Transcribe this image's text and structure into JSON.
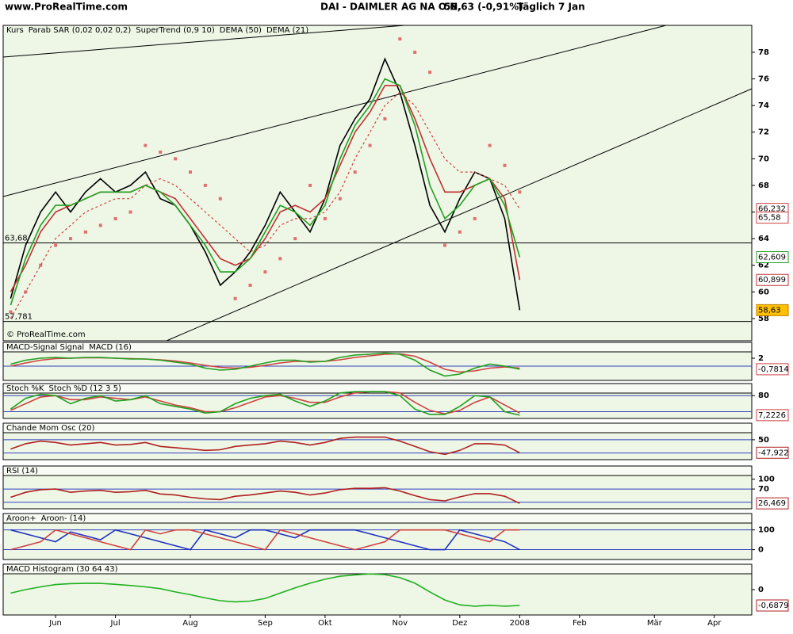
{
  "header": {
    "site": "www.ProRealTime.com",
    "instrument": "DAI - DAIMLER AG NA O.N.",
    "quote": "58,63 (-0,91%)",
    "period": "Täglich  7 Jan"
  },
  "x_axis": {
    "categories": [
      null,
      null,
      null,
      "Jun",
      null,
      null,
      null,
      "Jul",
      null,
      null,
      null,
      null,
      "Aug",
      null,
      null,
      null,
      null,
      "Sep",
      null,
      null,
      null,
      "Okt",
      null,
      null,
      null,
      null,
      "Nov",
      null,
      null,
      null,
      "Dez",
      null,
      null,
      null,
      "2008",
      null,
      null,
      null,
      "Feb",
      null,
      null,
      null,
      null,
      "Mär",
      null,
      null,
      null,
      "Apr",
      null,
      null
    ]
  },
  "chart_data": [
    {
      "type": "line",
      "watermark": "© ProRealTime.com",
      "ylim": [
        56.33,
        80.02
      ],
      "yticks": [
        58,
        60,
        62,
        64,
        66,
        68,
        70,
        72,
        74,
        76,
        78
      ],
      "hline_color": "#000000",
      "hlines": [
        {
          "value": 63.68,
          "label": "63,68"
        },
        {
          "value": 57.781,
          "label": "57,781"
        }
      ],
      "series": [
        {
          "name": "Kurs",
          "color": "#000000",
          "style": "line",
          "values": [
            59.5,
            63.5,
            66,
            67.5,
            66,
            67.5,
            68.5,
            67.5,
            68,
            69,
            67,
            66.5,
            65,
            63,
            60.5,
            61.5,
            63,
            65,
            67.5,
            66,
            64.5,
            67,
            71,
            73,
            74.5,
            77.5,
            75,
            71,
            66.5,
            64.5,
            67,
            69,
            68.5,
            65.5,
            58.63,
            null,
            null,
            null,
            null,
            null,
            null,
            null,
            null,
            null,
            null,
            null,
            null,
            null,
            null,
            null
          ]
        },
        {
          "name": "Parab SAR (0,02 0,02 0,2)",
          "color": "#e07070",
          "style": "dots",
          "values": [
            58.5,
            60,
            62,
            63.5,
            64,
            64.5,
            65,
            65.5,
            66,
            71,
            70.5,
            70,
            69,
            68,
            67,
            59.5,
            60.5,
            61.5,
            62.5,
            64,
            68,
            65.5,
            67,
            69,
            71,
            73,
            79,
            78,
            76.5,
            63.5,
            64.5,
            65.5,
            71,
            69.5,
            67.5,
            null,
            null,
            null,
            null,
            null,
            null,
            null,
            null,
            null,
            null,
            null,
            null,
            null,
            null,
            null
          ]
        },
        {
          "name": "SuperTrend (0,9 10)",
          "color": "#d04040",
          "style": "dashed",
          "values": [
            58,
            60,
            62,
            64,
            65,
            66,
            66.5,
            67,
            67,
            68,
            68.5,
            68,
            67,
            66,
            65,
            64,
            63,
            63.5,
            65,
            65.5,
            65.5,
            66,
            67.5,
            70,
            72,
            74,
            75,
            74,
            72,
            70,
            69,
            69,
            68.5,
            68,
            66.232,
            null,
            null,
            null,
            null,
            null,
            null,
            null,
            null,
            null,
            null,
            null,
            null,
            null,
            null,
            null
          ]
        },
        {
          "name": "DEMA (50)",
          "color": "#c03030",
          "style": "line",
          "values": [
            60,
            62,
            64.5,
            66,
            66.5,
            67,
            67.5,
            67.5,
            67.5,
            68,
            67.5,
            67,
            65.5,
            64,
            62.5,
            62,
            62.5,
            64,
            66,
            66.5,
            66,
            67,
            69.5,
            72,
            73.5,
            75.5,
            75.5,
            73,
            70,
            67.5,
            67.5,
            68,
            68.5,
            67,
            60.899,
            null,
            null,
            null,
            null,
            null,
            null,
            null,
            null,
            null,
            null,
            null,
            null,
            null,
            null,
            null
          ]
        },
        {
          "name": "DEMA (21)",
          "color": "#20a020",
          "style": "line",
          "values": [
            59,
            62.5,
            65,
            66.5,
            66.5,
            67,
            67.5,
            67.5,
            67.5,
            68,
            67.5,
            66.5,
            65,
            63.5,
            61.5,
            61.5,
            62.5,
            64.5,
            66.5,
            66,
            65,
            66.5,
            70,
            72.5,
            74,
            76,
            75.5,
            72.5,
            68,
            65.5,
            66.5,
            68,
            68.5,
            66.5,
            62.609,
            null,
            null,
            null,
            null,
            null,
            null,
            null,
            null,
            null,
            null,
            null,
            null,
            null,
            null,
            null
          ]
        }
      ],
      "last_labels": [
        {
          "value": 66.232,
          "label": "66,232",
          "color": "#d04040"
        },
        {
          "value": 65.58,
          "label": "65,58",
          "color": "#d04040"
        },
        {
          "value": 62.609,
          "label": "62,609",
          "color": "#20a020"
        },
        {
          "value": 60.899,
          "label": "60,899",
          "color": "#c03030"
        },
        {
          "value": 58.63,
          "label": "58,63",
          "color": "#c08000",
          "fill": "#ffc000"
        }
      ]
    },
    {
      "type": "line",
      "ylim": [
        -3.6,
        6
      ],
      "yticks": [
        2
      ],
      "hline_color": "#3040c0",
      "hlines": [
        0
      ],
      "series": [
        {
          "name": "MACD-Signal Signal",
          "color": "#d04040",
          "style": "line",
          "values": [
            0,
            0.8,
            1.5,
            1.9,
            2,
            2.1,
            2.1,
            2,
            1.9,
            1.8,
            1.6,
            1.3,
            0.8,
            0.2,
            -0.3,
            -0.5,
            -0.3,
            0.2,
            0.8,
            1.2,
            1.2,
            1.2,
            1.6,
            2.2,
            2.6,
            3,
            3.1,
            2.5,
            1,
            -0.8,
            -1.5,
            -1.2,
            -0.5,
            -0.2,
            -0.5,
            null,
            null,
            null,
            null,
            null,
            null,
            null,
            null,
            null,
            null,
            null,
            null,
            null,
            null,
            null
          ]
        },
        {
          "name": "MACD (16)",
          "color": "#20a020",
          "style": "line",
          "values": [
            0.5,
            1.5,
            2,
            2.2,
            2,
            2.2,
            2.2,
            2,
            1.8,
            1.8,
            1.5,
            1,
            0.5,
            -0.5,
            -1,
            -0.8,
            0,
            0.8,
            1.5,
            1.5,
            1,
            1.2,
            2.2,
            2.8,
            3,
            3.3,
            3,
            1.5,
            -1,
            -2.5,
            -2,
            -0.5,
            0.5,
            0,
            -0.7814,
            null,
            null,
            null,
            null,
            null,
            null,
            null,
            null,
            null,
            null,
            null,
            null,
            null,
            null,
            null
          ]
        }
      ],
      "last_labels": [
        {
          "value": -0.7814,
          "label": "-0,7814",
          "color": "#d04040"
        }
      ]
    },
    {
      "type": "line",
      "ylim": [
        -5,
        125
      ],
      "yticks": [
        80
      ],
      "hline_color": "#3040c0",
      "hlines": [
        80,
        20
      ],
      "series": [
        {
          "name": "Stoch %K",
          "color": "#d04040",
          "style": "line",
          "values": [
            25,
            50,
            75,
            80,
            65,
            65,
            75,
            70,
            65,
            75,
            60,
            45,
            35,
            20,
            20,
            35,
            55,
            75,
            80,
            70,
            55,
            55,
            75,
            90,
            95,
            95,
            90,
            55,
            25,
            12,
            25,
            55,
            75,
            45,
            15,
            null,
            null,
            null,
            null,
            null,
            null,
            null,
            null,
            null,
            null,
            null,
            null,
            null,
            null,
            null
          ]
        },
        {
          "name": "Stoch %D (12 3 5)",
          "color": "#20a020",
          "style": "line",
          "values": [
            30,
            70,
            85,
            80,
            50,
            70,
            80,
            60,
            65,
            80,
            50,
            40,
            30,
            15,
            20,
            50,
            70,
            80,
            85,
            60,
            40,
            60,
            90,
            95,
            95,
            95,
            80,
            30,
            10,
            10,
            40,
            80,
            75,
            20,
            7.2226,
            null,
            null,
            null,
            null,
            null,
            null,
            null,
            null,
            null,
            null,
            null,
            null,
            null,
            null,
            null
          ]
        }
      ],
      "last_labels": [
        {
          "value": 7.2226,
          "label": "7,2226",
          "color": "#d04040"
        }
      ]
    },
    {
      "type": "line",
      "ylim": [
        -100,
        175
      ],
      "yticks": [
        50
      ],
      "hline_color": "#3040c0",
      "hlines": [
        50,
        -50
      ],
      "series": [
        {
          "name": "Chande Mom Osc (20)",
          "color": "#b02020",
          "style": "line",
          "values": [
            -20,
            20,
            40,
            30,
            10,
            20,
            30,
            10,
            15,
            30,
            0,
            -10,
            -20,
            -30,
            -25,
            0,
            10,
            20,
            40,
            30,
            10,
            30,
            60,
            70,
            70,
            70,
            40,
            0,
            -40,
            -60,
            -30,
            20,
            20,
            10,
            -47.922,
            null,
            null,
            null,
            null,
            null,
            null,
            null,
            null,
            null,
            null,
            null,
            null,
            null,
            null,
            null
          ]
        }
      ],
      "last_labels": [
        {
          "value": -47.922,
          "label": "-47,922",
          "color": "#b02020"
        }
      ]
    },
    {
      "type": "line",
      "ylim": [
        10,
        140
      ],
      "yticks": [
        100,
        70
      ],
      "hline_color": "#3040c0",
      "hlines": [
        70,
        30
      ],
      "series": [
        {
          "name": "RSI (14)",
          "color": "#b02020",
          "style": "line",
          "values": [
            45,
            60,
            68,
            70,
            60,
            64,
            66,
            60,
            62,
            66,
            55,
            52,
            45,
            40,
            38,
            48,
            52,
            58,
            64,
            60,
            52,
            58,
            68,
            72,
            72,
            74,
            64,
            50,
            38,
            34,
            46,
            56,
            56,
            48,
            26.469,
            null,
            null,
            null,
            null,
            null,
            null,
            null,
            null,
            null,
            null,
            null,
            null,
            null,
            null,
            null
          ]
        }
      ],
      "last_labels": [
        {
          "value": 26.469,
          "label": "26,469",
          "color": "#b02020"
        }
      ]
    },
    {
      "type": "line",
      "ylim": [
        -50,
        183
      ],
      "yticks": [
        100,
        0
      ],
      "hline_color": "#3040c0",
      "hlines": [
        100,
        0
      ],
      "series": [
        {
          "name": "Aroon+",
          "color": "#2030c0",
          "style": "line",
          "values": [
            100,
            80,
            60,
            40,
            90,
            70,
            50,
            100,
            80,
            60,
            40,
            20,
            0,
            100,
            80,
            60,
            100,
            100,
            80,
            60,
            100,
            100,
            100,
            100,
            80,
            60,
            40,
            20,
            0,
            0,
            100,
            80,
            60,
            40,
            0,
            null,
            null,
            null,
            null,
            null,
            null,
            null,
            null,
            null,
            null,
            null,
            null,
            null,
            null,
            null
          ]
        },
        {
          "name": "Aroon- (14)",
          "color": "#d04040",
          "style": "line",
          "values": [
            0,
            20,
            40,
            100,
            80,
            60,
            40,
            20,
            0,
            100,
            80,
            100,
            100,
            80,
            60,
            40,
            20,
            0,
            100,
            80,
            60,
            40,
            20,
            0,
            20,
            40,
            100,
            100,
            100,
            100,
            80,
            60,
            40,
            100,
            100,
            null,
            null,
            null,
            null,
            null,
            null,
            null,
            null,
            null,
            null,
            null,
            null,
            null,
            null,
            null
          ]
        }
      ]
    },
    {
      "type": "line",
      "ylim": [
        -1.1,
        1.1
      ],
      "yticks": [
        0
      ],
      "hline_color": "#3040c0",
      "hlines": [],
      "series": [
        {
          "name": "MACD Histogram (30 64 43)",
          "color": "#20b020",
          "style": "line",
          "values": [
            -0.15,
            0,
            0.12,
            0.22,
            0.26,
            0.27,
            0.27,
            0.23,
            0.18,
            0.12,
            0.04,
            -0.1,
            -0.22,
            -0.36,
            -0.48,
            -0.53,
            -0.5,
            -0.38,
            -0.15,
            0.08,
            0.28,
            0.45,
            0.58,
            0.64,
            0.68,
            0.65,
            0.52,
            0.28,
            -0.1,
            -0.45,
            -0.66,
            -0.72,
            -0.68,
            -0.72,
            -0.6879,
            null,
            null,
            null,
            null,
            null,
            null,
            null,
            null,
            null,
            null,
            null,
            null,
            null,
            null,
            null
          ]
        }
      ],
      "last_labels": [
        {
          "value": -0.6879,
          "label": "-0,6879",
          "color": "#b02020"
        }
      ]
    }
  ]
}
